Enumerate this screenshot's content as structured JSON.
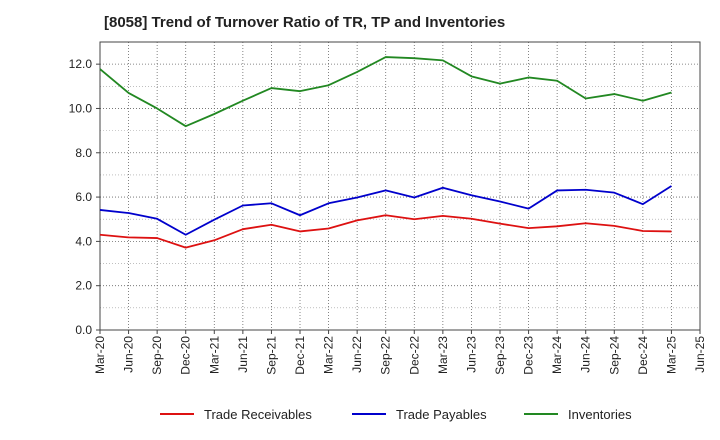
{
  "chart_data": {
    "type": "line",
    "title": "[8058]  Trend of Turnover Ratio of TR, TP and Inventories",
    "xlabel": "",
    "ylabel": "",
    "ylim": [
      0,
      13
    ],
    "yticks": [
      0.0,
      2.0,
      4.0,
      6.0,
      8.0,
      10.0,
      12.0
    ],
    "ytick_labels": [
      "0.0",
      "2.0",
      "4.0",
      "6.0",
      "8.0",
      "10.0",
      "12.0"
    ],
    "x_tick_labels": [
      "Mar-20",
      "Jun-20",
      "Sep-20",
      "Dec-20",
      "Mar-21",
      "Jun-21",
      "Sep-21",
      "Dec-21",
      "Mar-22",
      "Jun-22",
      "Sep-22",
      "Dec-22",
      "Mar-23",
      "Jun-23",
      "Sep-23",
      "Dec-23",
      "Mar-24",
      "Jun-24",
      "Sep-24",
      "Dec-24",
      "Mar-25",
      "Jun-25"
    ],
    "x": [
      "Mar-20",
      "Jun-20",
      "Sep-20",
      "Dec-20",
      "Mar-21",
      "Jun-21",
      "Sep-21",
      "Dec-21",
      "Mar-22",
      "Jun-22",
      "Sep-22",
      "Dec-22",
      "Mar-23",
      "Jun-23",
      "Sep-23",
      "Dec-23",
      "Mar-24",
      "Jun-24",
      "Sep-24",
      "Dec-24",
      "Mar-25"
    ],
    "grid": true,
    "legend_position": "bottom",
    "series": [
      {
        "name": "Trade Receivables",
        "color": "#dd1111",
        "values": [
          4.3,
          4.18,
          4.15,
          3.72,
          4.05,
          4.55,
          4.75,
          4.45,
          4.58,
          4.95,
          5.18,
          5.0,
          5.15,
          5.02,
          4.8,
          4.6,
          4.68,
          4.82,
          4.7,
          4.47,
          4.45
        ]
      },
      {
        "name": "Trade Payables",
        "color": "#0000cc",
        "values": [
          5.42,
          5.28,
          5.02,
          4.3,
          4.98,
          5.62,
          5.72,
          5.18,
          5.72,
          5.98,
          6.3,
          5.98,
          6.42,
          6.08,
          5.8,
          5.48,
          6.3,
          6.33,
          6.2,
          5.68,
          6.5
        ]
      },
      {
        "name": "Inventories",
        "color": "#228822",
        "values": [
          11.78,
          10.7,
          10.0,
          9.2,
          9.75,
          10.35,
          10.92,
          10.78,
          11.05,
          11.65,
          12.32,
          12.27,
          12.17,
          11.45,
          11.12,
          11.4,
          11.25,
          10.45,
          10.65,
          10.35,
          10.72
        ]
      }
    ]
  }
}
